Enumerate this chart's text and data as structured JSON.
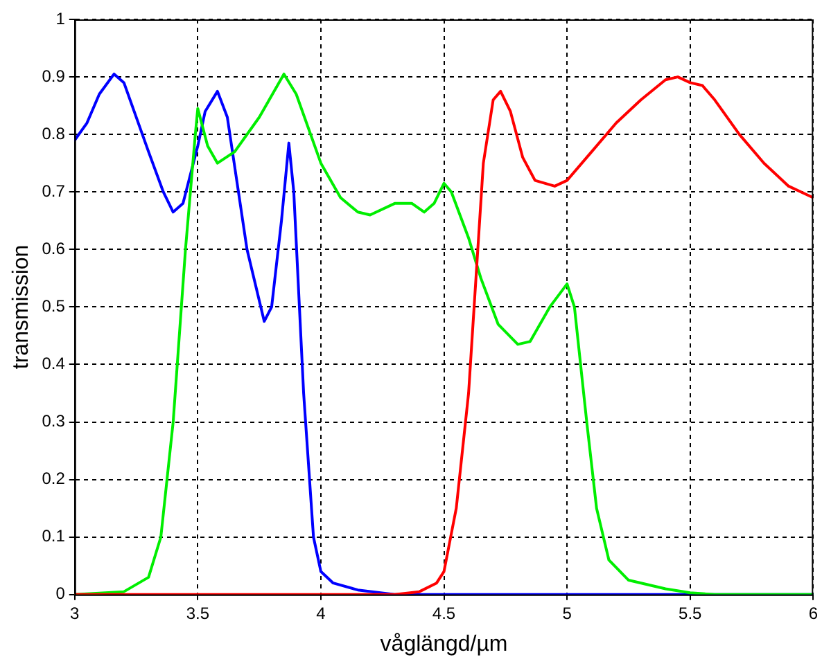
{
  "chart_data": {
    "type": "line",
    "xlabel": "våglängd/µm",
    "ylabel": "transmission",
    "xlim": [
      3,
      6
    ],
    "xticks": [
      3,
      3.5,
      4,
      4.5,
      5,
      5.5,
      6
    ],
    "ylim": [
      0,
      1
    ],
    "yticks": [
      0,
      0.1,
      0.2,
      0.3,
      0.4,
      0.5,
      0.6,
      0.7,
      0.8,
      0.9,
      1
    ],
    "grid": true,
    "legend": false,
    "marker": "none",
    "line_style": "solid",
    "series": [
      {
        "color": "#ff0000",
        "x": [
          3,
          4.3,
          4.4,
          4.47,
          4.5,
          4.55,
          4.6,
          4.63,
          4.66,
          4.7,
          4.73,
          4.77,
          4.82,
          4.87,
          4.95,
          5.0,
          5.1,
          5.2,
          5.3,
          5.4,
          5.45,
          5.5,
          5.55,
          5.6,
          5.7,
          5.8,
          5.9,
          6.0
        ],
        "values": [
          0,
          0,
          0.005,
          0.02,
          0.04,
          0.15,
          0.35,
          0.55,
          0.75,
          0.86,
          0.875,
          0.84,
          0.76,
          0.72,
          0.71,
          0.72,
          0.77,
          0.82,
          0.86,
          0.895,
          0.9,
          0.89,
          0.885,
          0.86,
          0.8,
          0.75,
          0.71,
          0.69
        ]
      },
      {
        "color": "#00ee00",
        "x": [
          3,
          3.2,
          3.3,
          3.35,
          3.4,
          3.45,
          3.49,
          3.5,
          3.54,
          3.58,
          3.65,
          3.75,
          3.85,
          3.9,
          4.0,
          4.08,
          4.15,
          4.2,
          4.3,
          4.37,
          4.42,
          4.46,
          4.5,
          4.53,
          4.6,
          4.65,
          4.72,
          4.8,
          4.85,
          4.93,
          5.0,
          5.03,
          5.08,
          5.12,
          5.17,
          5.25,
          5.4,
          5.5,
          5.6,
          6
        ],
        "values": [
          0,
          0.005,
          0.03,
          0.1,
          0.3,
          0.6,
          0.8,
          0.845,
          0.78,
          0.75,
          0.77,
          0.83,
          0.905,
          0.87,
          0.75,
          0.69,
          0.665,
          0.66,
          0.68,
          0.68,
          0.665,
          0.68,
          0.715,
          0.7,
          0.62,
          0.55,
          0.47,
          0.435,
          0.44,
          0.5,
          0.54,
          0.5,
          0.3,
          0.15,
          0.06,
          0.025,
          0.01,
          0.003,
          0,
          0
        ]
      },
      {
        "color": "#0000ff",
        "x": [
          3,
          3.05,
          3.1,
          3.16,
          3.2,
          3.3,
          3.36,
          3.4,
          3.44,
          3.5,
          3.53,
          3.58,
          3.62,
          3.7,
          3.77,
          3.8,
          3.84,
          3.87,
          3.89,
          3.93,
          3.97,
          4.0,
          4.05,
          4.15,
          4.3,
          6
        ],
        "values": [
          0.79,
          0.82,
          0.87,
          0.905,
          0.89,
          0.77,
          0.7,
          0.665,
          0.68,
          0.78,
          0.84,
          0.875,
          0.83,
          0.6,
          0.475,
          0.5,
          0.65,
          0.785,
          0.7,
          0.35,
          0.1,
          0.04,
          0.02,
          0.008,
          0,
          0
        ]
      }
    ]
  }
}
